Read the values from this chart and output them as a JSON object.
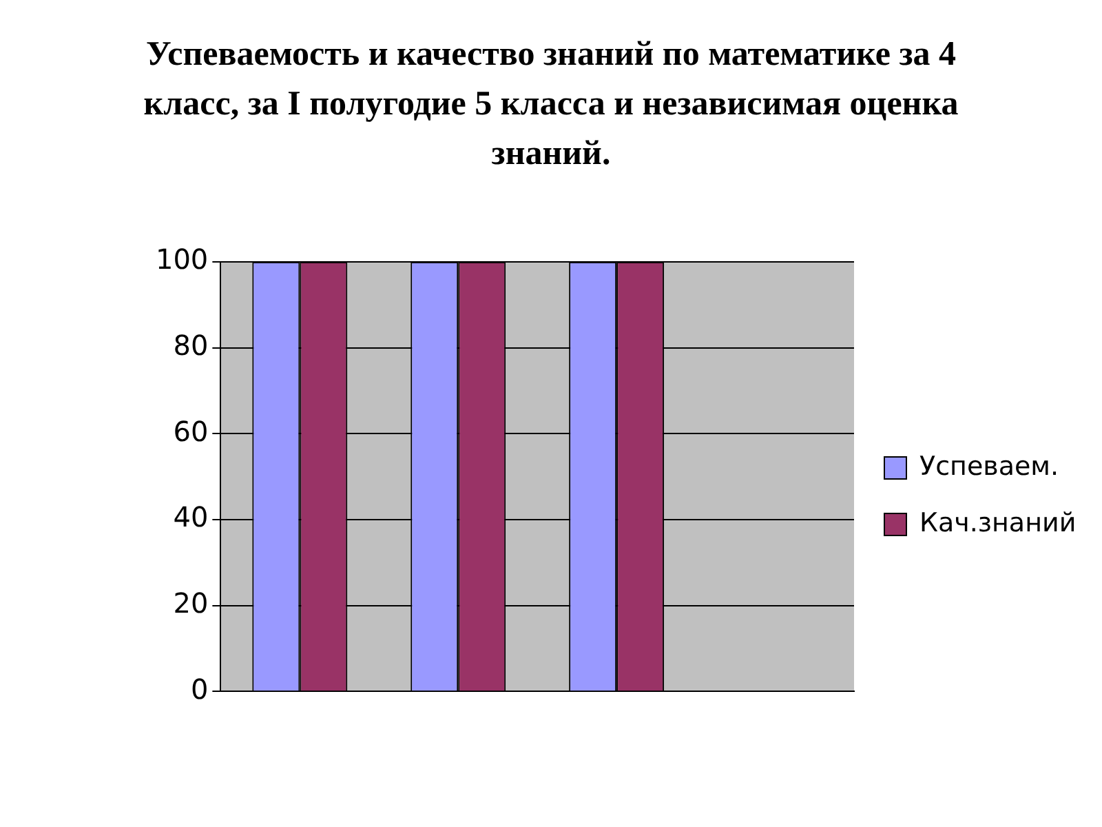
{
  "chart_data": {
    "type": "bar",
    "title": "Успеваемость и качество знаний по математике за 4 класс, за I полугодие 5 класса и независимая оценка знаний.",
    "categories": [
      null,
      null,
      null,
      null
    ],
    "series": [
      {
        "name": "Успеваем.",
        "color": "#9999ff",
        "values": [
          100,
          100,
          100,
          null
        ]
      },
      {
        "name": "Кач.знаний",
        "color": "#993366",
        "values": [
          100,
          100,
          100,
          null
        ]
      }
    ],
    "ylim": [
      0,
      100
    ],
    "yticks": [
      0,
      20,
      40,
      60,
      80,
      100
    ],
    "grid": "y",
    "legend": "right"
  }
}
